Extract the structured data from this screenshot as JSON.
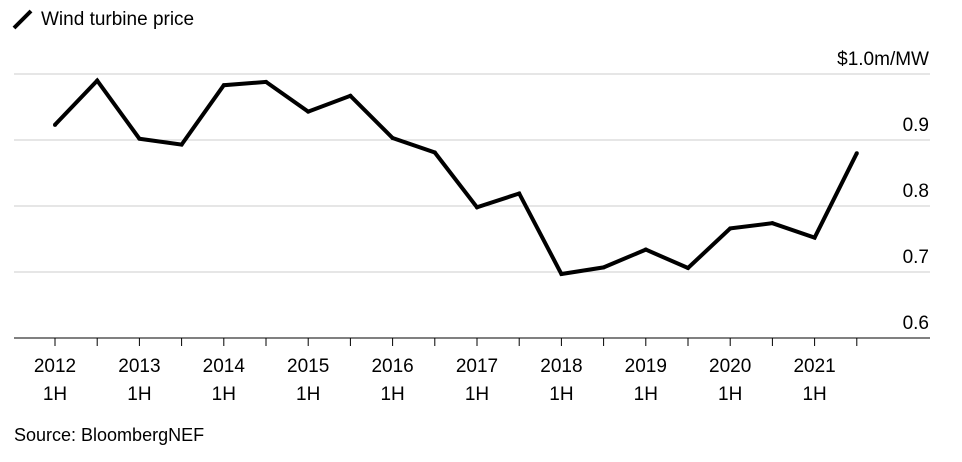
{
  "chart_data": {
    "type": "line",
    "title": "",
    "series": [
      {
        "name": "Wind turbine price",
        "x": [
          "2012 1H",
          "2012 2H",
          "2013 1H",
          "2013 2H",
          "2014 1H",
          "2014 2H",
          "2015 1H",
          "2015 2H",
          "2016 1H",
          "2016 2H",
          "2017 1H",
          "2017 2H",
          "2018 1H",
          "2018 2H",
          "2019 1H",
          "2019 2H",
          "2020 1H",
          "2020 2H",
          "2021 1H",
          "2021 2H"
        ],
        "values": [
          0.923,
          0.99,
          0.902,
          0.893,
          0.983,
          0.988,
          0.943,
          0.967,
          0.903,
          0.881,
          0.798,
          0.819,
          0.697,
          0.707,
          0.734,
          0.706,
          0.766,
          0.774,
          0.752,
          0.88
        ]
      }
    ],
    "x_tick_labels": [
      {
        "year": "2012",
        "half": "1H"
      },
      {
        "year": "2013",
        "half": "1H"
      },
      {
        "year": "2014",
        "half": "1H"
      },
      {
        "year": "2015",
        "half": "1H"
      },
      {
        "year": "2016",
        "half": "1H"
      },
      {
        "year": "2017",
        "half": "1H"
      },
      {
        "year": "2018",
        "half": "1H"
      },
      {
        "year": "2019",
        "half": "1H"
      },
      {
        "year": "2020",
        "half": "1H"
      },
      {
        "year": "2021",
        "half": "1H"
      }
    ],
    "y_ticks": [
      1.0,
      0.9,
      0.8,
      0.7,
      0.6
    ],
    "y_tick_labels": [
      "$1.0m/MW",
      "0.9",
      "0.8",
      "0.7",
      "0.6"
    ],
    "ylim": [
      0.6,
      1.0
    ],
    "grid": true,
    "legend": "top-left",
    "line_color": "#000000",
    "grid_color": "#cccccc"
  },
  "source": "Source: BloombergNEF"
}
